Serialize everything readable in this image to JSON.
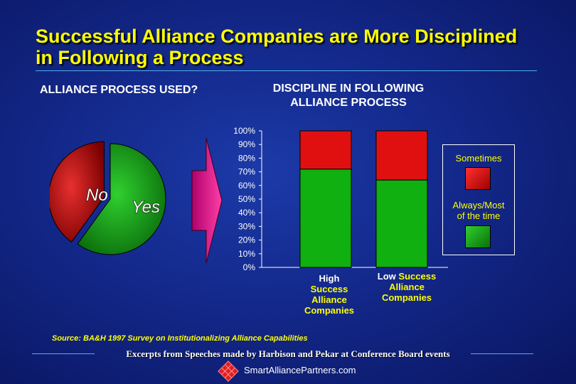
{
  "title_line1": "Successful Alliance Companies are More Disciplined",
  "title_line2": "in Following a Process",
  "pie_heading": "ALLIANCE PROCESS USED?",
  "chart_heading_line1": "DISCIPLINE IN FOLLOWING",
  "chart_heading_line2": "ALLIANCE PROCESS",
  "pie": {
    "type": "pie",
    "slices": [
      {
        "label": "No",
        "value": 40,
        "color": "#d01010"
      },
      {
        "label": "Yes",
        "value": 60,
        "color": "#18b018"
      }
    ]
  },
  "chart_data": {
    "type": "bar",
    "stacked": true,
    "categories": [
      "High Success Alliance Companies",
      "Low Success Alliance Companies"
    ],
    "series": [
      {
        "name": "Always/Most of the time",
        "values": [
          72,
          64
        ],
        "color": "#10b010"
      },
      {
        "name": "Sometimes",
        "values": [
          28,
          36
        ],
        "color": "#e01010"
      }
    ],
    "ylim": [
      0,
      100
    ],
    "yticks": [
      "0%",
      "10%",
      "20%",
      "30%",
      "40%",
      "50%",
      "60%",
      "70%",
      "80%",
      "90%",
      "100%"
    ],
    "legend_position": "right"
  },
  "xlabels": {
    "high_word": "High",
    "high_rest": [
      "Success",
      "Alliance",
      "Companies"
    ],
    "low_word": "Low",
    "low_first_rest": "Success",
    "low_rest": [
      "Alliance",
      "Companies"
    ]
  },
  "legend": {
    "sometimes": "Sometimes",
    "always_line1": "Always/Most",
    "always_line2": "of the time"
  },
  "source": "Source:  BA&H 1997 Survey on Institutionalizing Alliance Capabilities",
  "footer": "Excerpts from Speeches made by Harbison and Pekar at Conference Board events",
  "website": "SmartAlliancePartners.com",
  "colors": {
    "title": "#ffff00",
    "accent_line": "#4fb0e8",
    "sometimes": "#e01010",
    "always": "#10b010"
  }
}
